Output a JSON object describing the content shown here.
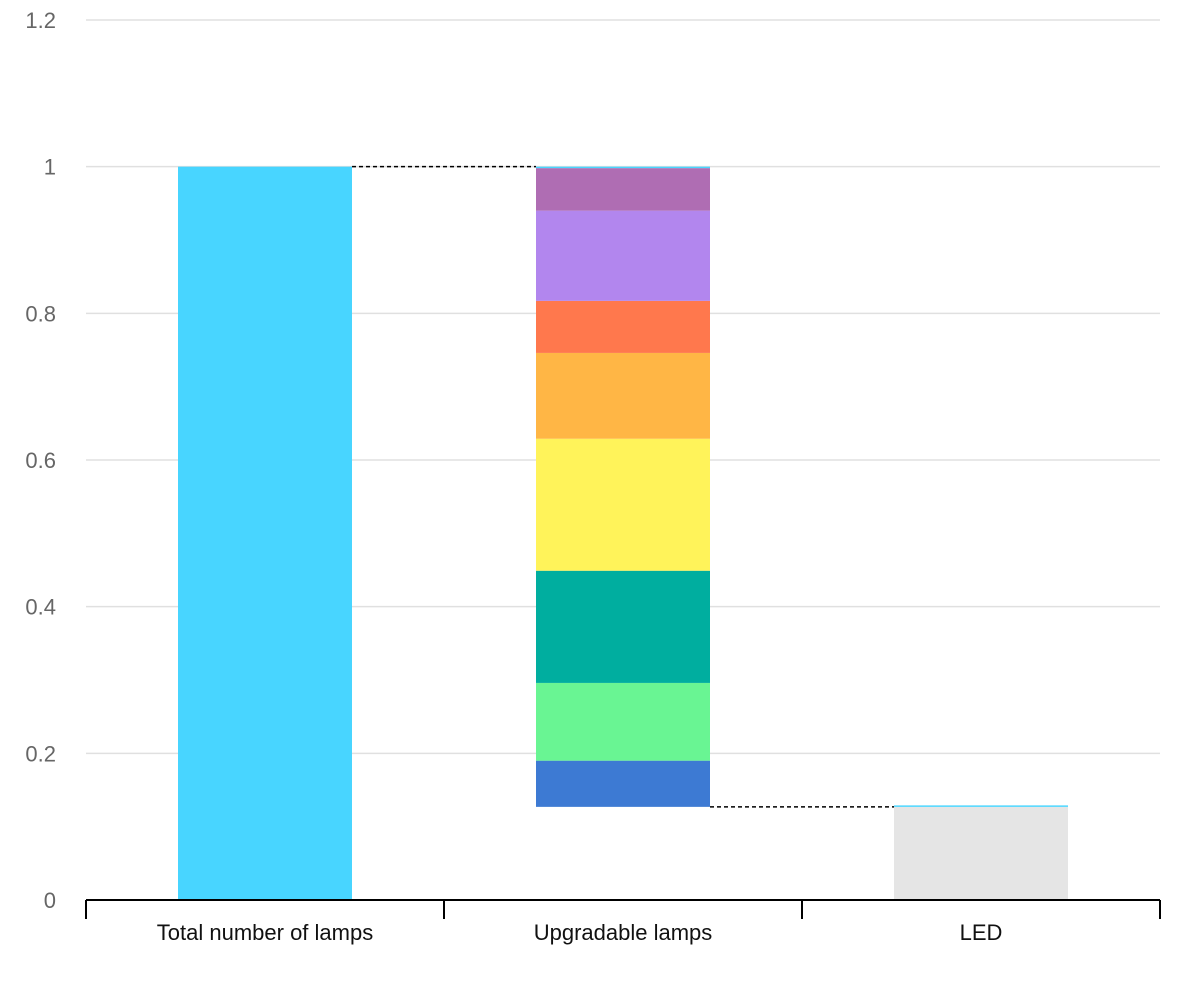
{
  "chart_data": {
    "type": "bar",
    "subtype": "waterfall-stacked",
    "title": "",
    "xlabel": "",
    "ylabel": "",
    "ylim": [
      0,
      1.2
    ],
    "yticks": [
      0,
      0.2,
      0.4,
      0.6,
      0.8,
      1,
      1.2
    ],
    "ytick_labels": [
      "0",
      "0.2",
      "0.4",
      "0.6",
      "0.8",
      "1",
      "1.2"
    ],
    "grid": true,
    "legend": "none",
    "categories": [
      "Total number of lamps",
      "Upgradable lamps",
      "LED"
    ],
    "bars": [
      {
        "category": "Total number of lamps",
        "segments": [
          {
            "from": 0,
            "to": 1.0,
            "color": "#48d5ff"
          }
        ]
      },
      {
        "category": "Upgradable lamps",
        "segments": [
          {
            "from": 0.127,
            "to": 0.19,
            "color": "#3d7ad3"
          },
          {
            "from": 0.19,
            "to": 0.296,
            "color": "#69f593"
          },
          {
            "from": 0.296,
            "to": 0.449,
            "color": "#00ae9f"
          },
          {
            "from": 0.449,
            "to": 0.629,
            "color": "#fff35a"
          },
          {
            "from": 0.629,
            "to": 0.746,
            "color": "#ffb645"
          },
          {
            "from": 0.746,
            "to": 0.817,
            "color": "#ff784d"
          },
          {
            "from": 0.817,
            "to": 0.94,
            "color": "#b286ee"
          },
          {
            "from": 0.94,
            "to": 0.998,
            "color": "#af6db3"
          },
          {
            "from": 0.998,
            "to": 1.0,
            "color": "#48d5ff"
          }
        ]
      },
      {
        "category": "LED",
        "segments": [
          {
            "from": 0,
            "to": 0.127,
            "color": "#e5e5e5"
          },
          {
            "from": 0.127,
            "to": 0.129,
            "color": "#48d5ff"
          }
        ]
      }
    ],
    "connectors": [
      {
        "from_category": 0,
        "to_category": 1,
        "value": 1.0
      },
      {
        "from_category": 1,
        "to_category": 2,
        "value": 0.127
      }
    ],
    "colors": {
      "grid": "#e0e0e0",
      "axis": "#000000",
      "connector": "#000000"
    }
  }
}
